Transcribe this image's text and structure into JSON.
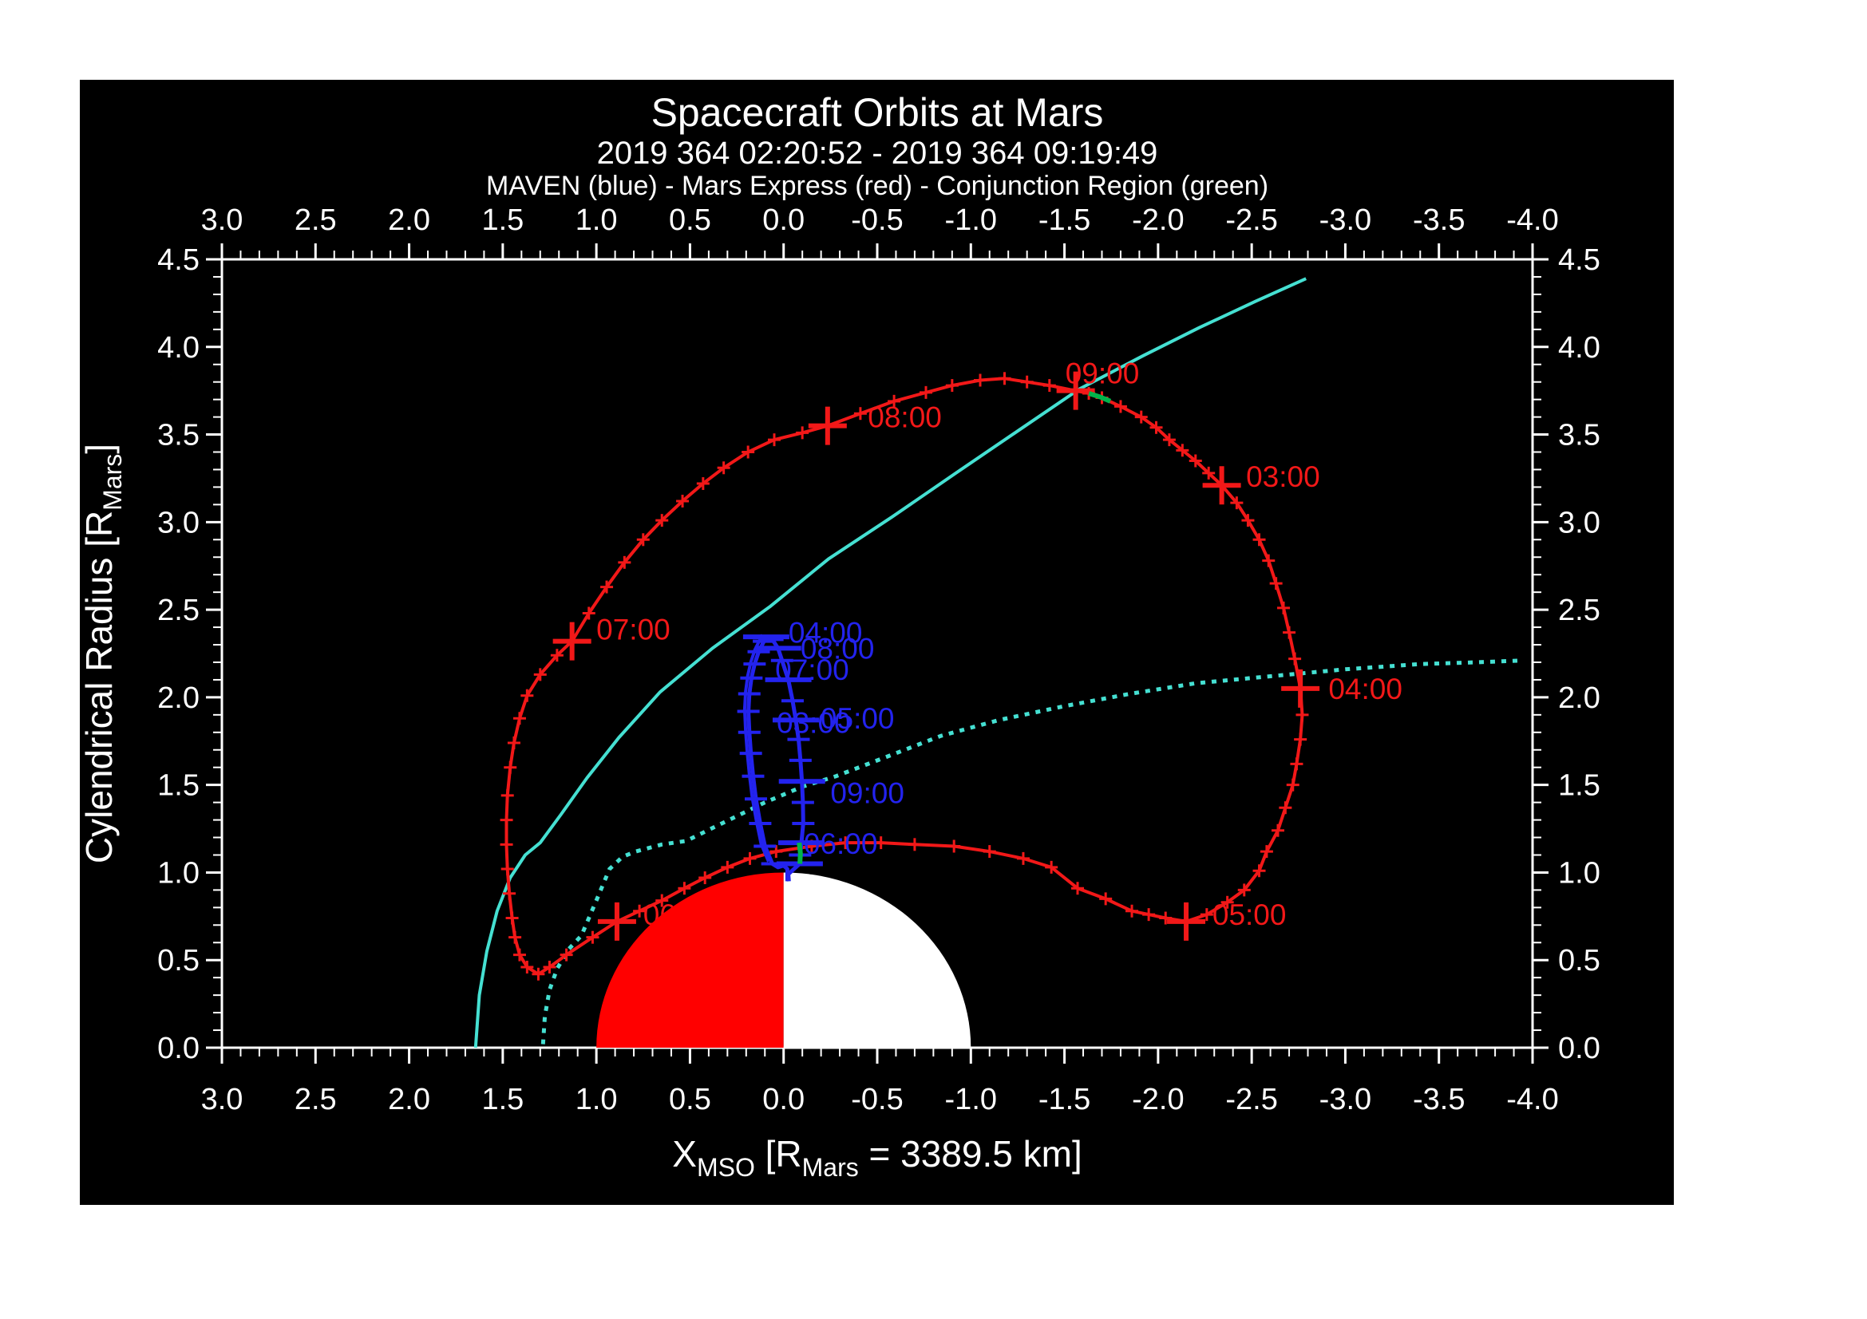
{
  "title": "Spacecraft Orbits at Mars",
  "subtitle": "2019 364 02:20:52 - 2019 364 09:19:49",
  "legend": "MAVEN (blue) - Mars Express (red) - Conjunction Region (green)",
  "colors": {
    "background": "#FFFFFF",
    "plot_bg": "#000000",
    "axis": "#FFFFFF",
    "red": "#F21818",
    "blue": "#2323EE",
    "cyan": "#45E0D2",
    "green": "#00B44B",
    "mars_day": "#FF0000",
    "mars_night": "#FFFFFF"
  },
  "chart_data": {
    "type": "line",
    "title": "Spacecraft Orbits at Mars",
    "subtitle": "2019 364 02:20:52 - 2019 364 09:19:49",
    "legend_note": "MAVEN (blue) - Mars Express (red) - Conjunction Region (green)",
    "xlabel": "X_MSO [R_Mars = 3389.5 km]",
    "ylabel": "Cylendrical Radius [R_Mars]",
    "xlabel_parts": [
      {
        "t": "X"
      },
      {
        "t": "MSO",
        "sub": true
      },
      {
        "t": " [R"
      },
      {
        "t": "Mars",
        "sub": true
      },
      {
        "t": " = 3389.5 km]"
      }
    ],
    "ylabel_parts": [
      {
        "t": "Cylendrical Radius [R"
      },
      {
        "t": "Mars",
        "sub": true
      },
      {
        "t": "]"
      }
    ],
    "x_axis": {
      "start": 3.0,
      "end": -4.0,
      "reversed": true,
      "major_ticks": [
        "3.0",
        "2.5",
        "2.0",
        "1.5",
        "1.0",
        "0.5",
        "0.0",
        "-0.5",
        "-1.0",
        "-1.5",
        "-2.0",
        "-2.5",
        "-3.0",
        "-3.5",
        "-4.0"
      ],
      "major_step": 0.5,
      "minor_step": 0.1,
      "labels_top_and_bottom": true
    },
    "y_axis": {
      "start": 0.0,
      "end": 4.5,
      "major_ticks": [
        "0.0",
        "0.5",
        "1.0",
        "1.5",
        "2.0",
        "2.5",
        "3.0",
        "3.5",
        "4.0",
        "4.5"
      ],
      "major_step": 0.5,
      "minor_step": 0.1,
      "labels_left_and_right": true
    },
    "mars": {
      "center": [
        0.0,
        0.0
      ],
      "radius": 1.0,
      "dayside": "left half (X>0) red",
      "nightside": "right half (X<0) white"
    },
    "series": [
      {
        "name": "bow-shock",
        "style": "solid",
        "color_key": "cyan",
        "points": [
          [
            1.645,
            0.0
          ],
          [
            1.625,
            0.3
          ],
          [
            1.585,
            0.55
          ],
          [
            1.53,
            0.78
          ],
          [
            1.46,
            0.97
          ],
          [
            1.38,
            1.1
          ],
          [
            1.3,
            1.17
          ],
          [
            1.19,
            1.33
          ],
          [
            1.05,
            1.54
          ],
          [
            0.88,
            1.77
          ],
          [
            0.66,
            2.03
          ],
          [
            0.38,
            2.28
          ],
          [
            0.07,
            2.52
          ],
          [
            -0.24,
            2.79
          ],
          [
            -0.58,
            3.03
          ],
          [
            -0.92,
            3.28
          ],
          [
            -1.25,
            3.52
          ],
          [
            -1.58,
            3.76
          ],
          [
            -1.92,
            3.95
          ],
          [
            -2.22,
            4.11
          ],
          [
            -2.52,
            4.26
          ],
          [
            -2.79,
            4.39
          ]
        ]
      },
      {
        "name": "magnetopause",
        "style": "dotted",
        "color_key": "cyan",
        "points": [
          [
            1.285,
            0.02
          ],
          [
            1.275,
            0.18
          ],
          [
            1.25,
            0.33
          ],
          [
            1.21,
            0.45
          ],
          [
            1.15,
            0.56
          ],
          [
            1.08,
            0.64
          ],
          [
            1.0,
            0.84
          ],
          [
            0.93,
            1.02
          ],
          [
            0.86,
            1.09
          ],
          [
            0.79,
            1.12
          ],
          [
            0.65,
            1.16
          ],
          [
            0.52,
            1.18
          ],
          [
            0.35,
            1.27
          ],
          [
            0.1,
            1.4
          ],
          [
            -0.1,
            1.49
          ],
          [
            -0.28,
            1.55
          ],
          [
            -0.55,
            1.66
          ],
          [
            -0.84,
            1.78
          ],
          [
            -1.15,
            1.87
          ],
          [
            -1.5,
            1.95
          ],
          [
            -1.85,
            2.02
          ],
          [
            -2.2,
            2.08
          ],
          [
            -2.6,
            2.12
          ],
          [
            -3.0,
            2.16
          ],
          [
            -3.4,
            2.19
          ],
          [
            -3.7,
            2.2
          ],
          [
            -3.94,
            2.21
          ]
        ]
      },
      {
        "name": "mars-express-orbit",
        "style": "solid-with-time-ticks",
        "color_key": "red",
        "points": [
          [
            -1.7,
            3.71
          ],
          [
            -1.8,
            3.66
          ],
          [
            -1.91,
            3.6
          ],
          [
            -1.99,
            3.54
          ],
          [
            -2.06,
            3.47
          ],
          [
            -2.13,
            3.41
          ],
          [
            -2.2,
            3.35
          ],
          [
            -2.27,
            3.28
          ],
          [
            -2.34,
            3.21
          ],
          [
            -2.42,
            3.11
          ],
          [
            -2.48,
            3.01
          ],
          [
            -2.54,
            2.9
          ],
          [
            -2.59,
            2.78
          ],
          [
            -2.63,
            2.65
          ],
          [
            -2.67,
            2.51
          ],
          [
            -2.7,
            2.37
          ],
          [
            -2.73,
            2.22
          ],
          [
            -2.76,
            2.05
          ],
          [
            -2.77,
            1.9
          ],
          [
            -2.76,
            1.76
          ],
          [
            -2.74,
            1.62
          ],
          [
            -2.72,
            1.5
          ],
          [
            -2.68,
            1.37
          ],
          [
            -2.64,
            1.24
          ],
          [
            -2.58,
            1.12
          ],
          [
            -2.54,
            1.01
          ],
          [
            -2.46,
            0.9
          ],
          [
            -2.37,
            0.83
          ],
          [
            -2.26,
            0.76
          ],
          [
            -2.15,
            0.72
          ],
          [
            -2.04,
            0.74
          ],
          [
            -1.95,
            0.76
          ],
          [
            -1.86,
            0.78
          ],
          [
            -1.72,
            0.85
          ],
          [
            -1.57,
            0.91
          ],
          [
            -1.43,
            1.03
          ],
          [
            -1.28,
            1.08
          ],
          [
            -1.1,
            1.12
          ],
          [
            -0.91,
            1.15
          ],
          [
            -0.7,
            1.16
          ],
          [
            -0.52,
            1.17
          ],
          [
            -0.33,
            1.17
          ],
          [
            -0.15,
            1.15
          ],
          [
            0.04,
            1.12
          ],
          [
            0.18,
            1.08
          ],
          [
            0.3,
            1.03
          ],
          [
            0.42,
            0.97
          ],
          [
            0.53,
            0.91
          ],
          [
            0.65,
            0.84
          ],
          [
            0.77,
            0.78
          ],
          [
            0.89,
            0.72
          ],
          [
            1.02,
            0.63
          ],
          [
            1.16,
            0.53
          ],
          [
            1.25,
            0.46
          ],
          [
            1.31,
            0.42
          ],
          [
            1.37,
            0.46
          ],
          [
            1.41,
            0.53
          ],
          [
            1.435,
            0.63
          ],
          [
            1.45,
            0.74
          ],
          [
            1.465,
            0.88
          ],
          [
            1.475,
            1.02
          ],
          [
            1.48,
            1.16
          ],
          [
            1.48,
            1.3
          ],
          [
            1.475,
            1.44
          ],
          [
            1.46,
            1.6
          ],
          [
            1.44,
            1.74
          ],
          [
            1.41,
            1.88
          ],
          [
            1.37,
            2.01
          ],
          [
            1.3,
            2.13
          ],
          [
            1.21,
            2.24
          ],
          [
            1.13,
            2.32
          ],
          [
            1.04,
            2.48
          ],
          [
            0.945,
            2.63
          ],
          [
            0.85,
            2.77
          ],
          [
            0.75,
            2.9
          ],
          [
            0.65,
            3.01
          ],
          [
            0.54,
            3.12
          ],
          [
            0.43,
            3.22
          ],
          [
            0.32,
            3.31
          ],
          [
            0.19,
            3.4
          ],
          [
            0.05,
            3.47
          ],
          [
            -0.1,
            3.51
          ],
          [
            -0.235,
            3.55
          ],
          [
            -0.41,
            3.62
          ],
          [
            -0.59,
            3.69
          ],
          [
            -0.76,
            3.74
          ],
          [
            -0.9,
            3.78
          ],
          [
            -1.05,
            3.81
          ],
          [
            -1.18,
            3.82
          ],
          [
            -1.3,
            3.8
          ],
          [
            -1.42,
            3.78
          ],
          [
            -1.56,
            3.75
          ],
          [
            -1.63,
            3.735
          ]
        ],
        "hour_markers": [
          {
            "time": "03:00",
            "marker": [
              -2.34,
              3.21
            ],
            "label": [
              -2.47,
              3.26
            ]
          },
          {
            "time": "04:00",
            "marker": [
              -2.76,
              2.05
            ],
            "label": [
              -2.91,
              2.05
            ]
          },
          {
            "time": "05:00",
            "marker": [
              -2.15,
              0.72
            ],
            "label": [
              -2.29,
              0.76
            ]
          },
          {
            "time": "06:00",
            "marker": [
              0.89,
              0.72
            ],
            "label": [
              0.75,
              0.76
            ]
          },
          {
            "time": "07:00",
            "marker": [
              1.13,
              2.32
            ],
            "label": [
              1.0,
              2.39
            ]
          },
          {
            "time": "08:00",
            "marker": [
              -0.235,
              3.55
            ],
            "label": [
              -0.45,
              3.6
            ]
          },
          {
            "time": "09:00",
            "marker": [
              -1.56,
              3.75
            ],
            "label": [
              -1.505,
              3.85
            ]
          }
        ]
      },
      {
        "name": "maven-orbit",
        "style": "solid-with-time-ticks",
        "color_key": "blue",
        "points": [
          [
            -0.02,
            0.95
          ],
          [
            -0.02,
            1.02
          ],
          [
            0.0,
            1.04
          ],
          [
            0.03,
            1.03
          ],
          [
            0.06,
            1.05
          ],
          [
            0.1,
            1.15
          ],
          [
            0.125,
            1.28
          ],
          [
            0.148,
            1.42
          ],
          [
            0.163,
            1.55
          ],
          [
            0.175,
            1.68
          ],
          [
            0.183,
            1.8
          ],
          [
            0.188,
            1.92
          ],
          [
            0.183,
            2.02
          ],
          [
            0.172,
            2.11
          ],
          [
            0.155,
            2.19
          ],
          [
            0.133,
            2.26
          ],
          [
            0.105,
            2.32
          ],
          [
            0.093,
            2.345
          ],
          [
            0.06,
            2.33
          ],
          [
            0.03,
            2.28
          ],
          [
            0.008,
            2.21
          ],
          [
            -0.025,
            2.1
          ],
          [
            -0.048,
            1.98
          ],
          [
            -0.065,
            1.87
          ],
          [
            -0.08,
            1.76
          ],
          [
            -0.09,
            1.64
          ],
          [
            -0.098,
            1.52
          ],
          [
            -0.103,
            1.4
          ],
          [
            -0.105,
            1.28
          ],
          [
            -0.095,
            1.17
          ],
          [
            -0.088,
            1.1
          ],
          [
            -0.086,
            1.05
          ],
          [
            -0.05,
            1.015
          ],
          [
            -0.025,
            0.99
          ],
          [
            -0.028,
            0.95
          ]
        ],
        "second_pass_offset": [
          0.02,
          0.012
        ],
        "time_labels": [
          {
            "time": "04:00",
            "label": [
              -0.026,
              2.37
            ]
          },
          {
            "time": "08:00",
            "label": [
              -0.09,
              2.28
            ]
          },
          {
            "time": "07:00",
            "label": [
              0.045,
              2.16
            ]
          },
          {
            "time": "03:00",
            "label": [
              0.037,
              1.855
            ]
          },
          {
            "time": "05:00",
            "label": [
              -0.197,
              1.88
            ]
          },
          {
            "time": "09:00",
            "label": [
              -0.25,
              1.455
            ]
          },
          {
            "time": "06:00",
            "label": [
              -0.107,
              1.165
            ]
          }
        ]
      },
      {
        "name": "conjunction-region-on-mars-express",
        "style": "solid",
        "color_key": "green",
        "points": [
          [
            -1.63,
            3.735
          ],
          [
            -1.69,
            3.715
          ],
          [
            -1.745,
            3.69
          ]
        ]
      },
      {
        "name": "conjunction-region-on-maven",
        "style": "solid",
        "color_key": "green",
        "points": [
          [
            -0.083,
            1.17
          ],
          [
            -0.09,
            1.11
          ],
          [
            -0.087,
            1.05
          ]
        ]
      }
    ]
  }
}
